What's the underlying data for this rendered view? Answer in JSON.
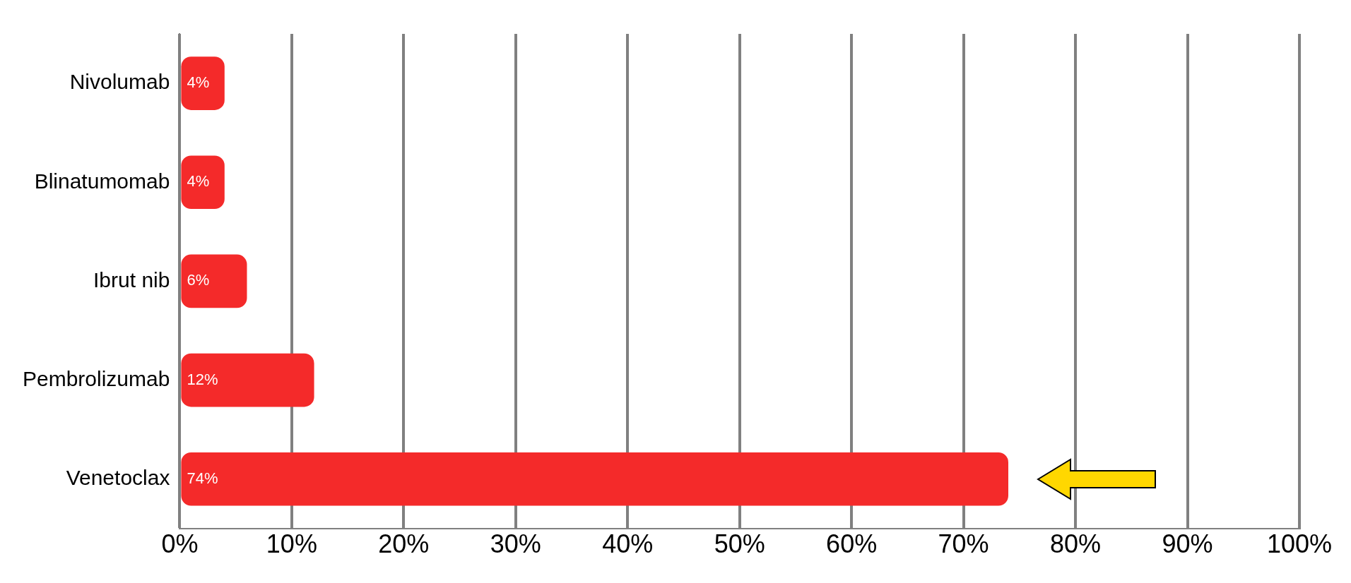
{
  "chart_data": {
    "type": "bar",
    "orientation": "horizontal",
    "categories": [
      "Nivolumab",
      "Blinatumomab",
      "Ibrut nib",
      "Pembrolizumab",
      "Venetoclax"
    ],
    "values": [
      4,
      4,
      6,
      12,
      74
    ],
    "color": "#f42a2a",
    "xlim": [
      0,
      100
    ],
    "xticks": [
      {
        "value": 0,
        "label": "0%"
      },
      {
        "value": 10,
        "label": "10%"
      },
      {
        "value": 20,
        "label": "20%"
      },
      {
        "value": 30,
        "label": "30%"
      },
      {
        "value": 40,
        "label": "40%"
      },
      {
        "value": 50,
        "label": "50%"
      },
      {
        "value": 60,
        "label": "60%"
      },
      {
        "value": 70,
        "label": "70%"
      },
      {
        "value": 80,
        "label": "80%"
      },
      {
        "value": 90,
        "label": "90%"
      },
      {
        "value": 100,
        "label": "100%"
      }
    ],
    "value_labels": [
      "4%",
      "4%",
      "6%",
      "12%",
      "74%"
    ],
    "grid": "x",
    "legend": false
  }
}
